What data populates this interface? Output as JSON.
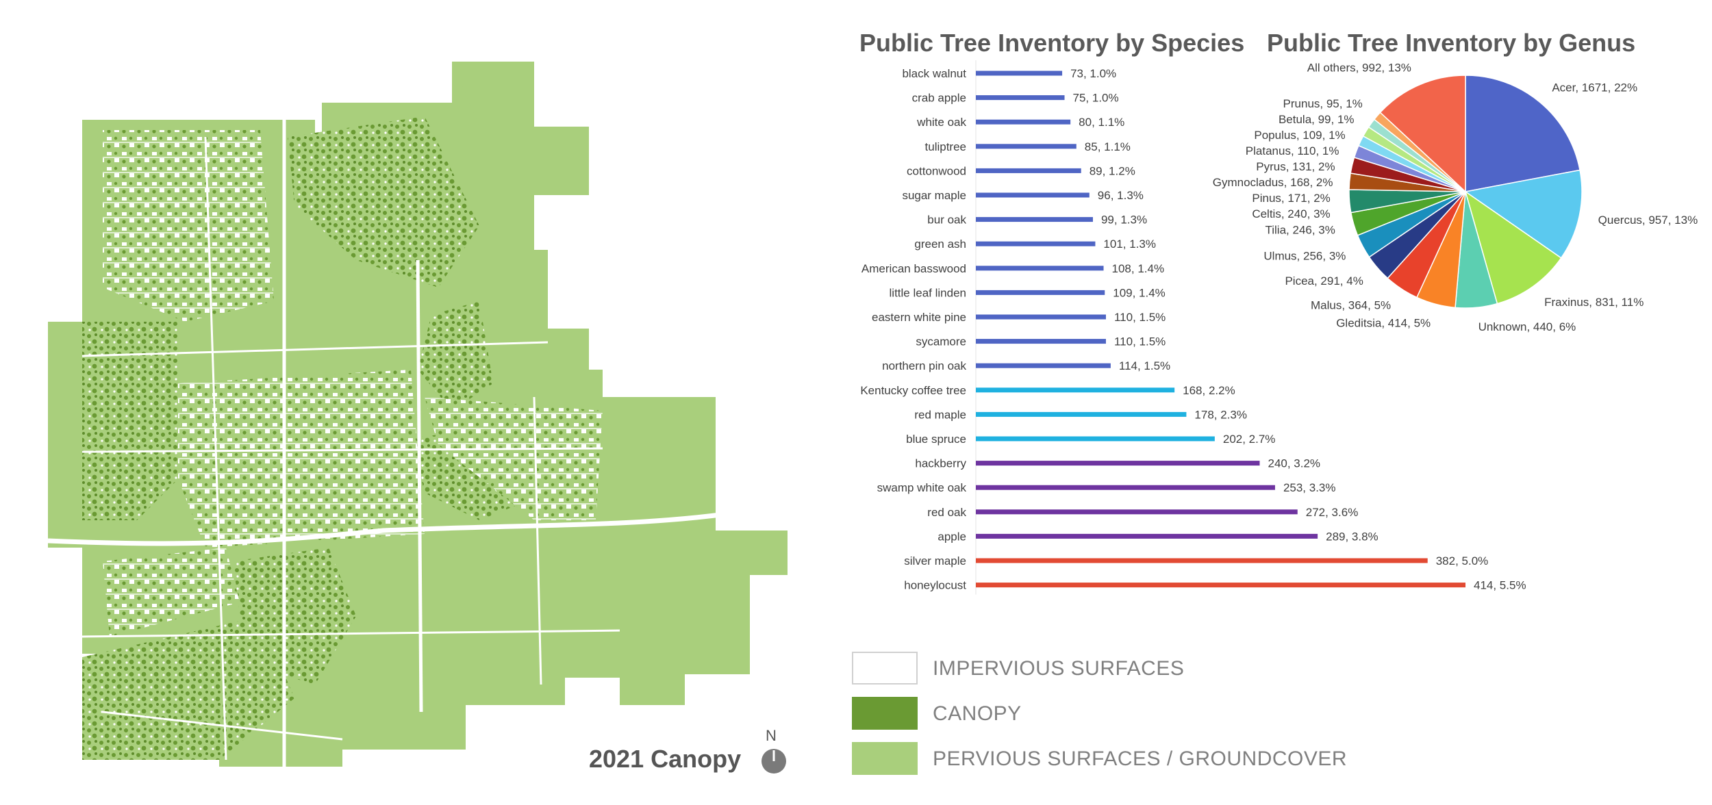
{
  "map": {
    "title": "2021 Canopy",
    "north_label": "N",
    "colors": {
      "canopy": "#6a9a33",
      "pervious": "#a9cf7c",
      "impervious": "#ffffff"
    }
  },
  "legend": {
    "items": [
      {
        "label": "IMPERVIOUS SURFACES",
        "color": "#ffffff"
      },
      {
        "label": "CANOPY",
        "color": "#6a9a33"
      },
      {
        "label": "PERVIOUS SURFACES / GROUNDCOVER",
        "color": "#a9cf7c"
      }
    ]
  },
  "chart_data": [
    {
      "type": "bar",
      "orientation": "horizontal",
      "title": "Public Tree Inventory by Species",
      "categories": [
        "black walnut",
        "crab apple",
        "white oak",
        "tuliptree",
        "cottonwood",
        "sugar maple",
        "bur oak",
        "green ash",
        "American basswood",
        "little leaf linden",
        "eastern white pine",
        "sycamore",
        "northern pin oak",
        "Kentucky coffee tree",
        "red maple",
        "blue spruce",
        "hackberry",
        "swamp white oak",
        "red oak",
        "apple",
        "silver maple",
        "honeylocust"
      ],
      "values": [
        73,
        75,
        80,
        85,
        89,
        96,
        99,
        101,
        108,
        109,
        110,
        110,
        114,
        168,
        178,
        202,
        240,
        253,
        272,
        289,
        382,
        414
      ],
      "percents": [
        "1.0%",
        "1.0%",
        "1.1%",
        "1.1%",
        "1.2%",
        "1.3%",
        "1.3%",
        "1.3%",
        "1.4%",
        "1.4%",
        "1.5%",
        "1.5%",
        "1.5%",
        "2.2%",
        "2.3%",
        "2.7%",
        "3.2%",
        "3.3%",
        "3.6%",
        "3.8%",
        "5.0%",
        "5.5%"
      ],
      "data_labels": [
        "73, 1.0%",
        "75, 1.0%",
        "80, 1.1%",
        "85, 1.1%",
        "89, 1.2%",
        "96, 1.3%",
        "99, 1.3%",
        "101, 1.3%",
        "108, 1.4%",
        "109, 1.4%",
        "110, 1.5%",
        "110, 1.5%",
        "114, 1.5%",
        "168, 2.2%",
        "178, 2.3%",
        "202, 2.7%",
        "240, 3.2%",
        "253, 3.3%",
        "272, 3.6%",
        "289, 3.8%",
        "382, 5.0%",
        "414, 5.5%"
      ],
      "bar_colors": [
        "#4f65c4",
        "#4f65c4",
        "#4f65c4",
        "#4f65c4",
        "#4f65c4",
        "#4f65c4",
        "#4f65c4",
        "#4f65c4",
        "#4f65c4",
        "#4f65c4",
        "#4f65c4",
        "#4f65c4",
        "#4f65c4",
        "#1fb1e0",
        "#1fb1e0",
        "#1fb1e0",
        "#6e34a0",
        "#6e34a0",
        "#6e34a0",
        "#6e34a0",
        "#e24a33",
        "#e24a33"
      ],
      "xlim": [
        0,
        414
      ],
      "xlabel": "",
      "ylabel": ""
    },
    {
      "type": "pie",
      "title": "Public Tree Inventory by Genus",
      "labels": [
        "Acer",
        "Quercus",
        "Fraxinus",
        "Unknown",
        "Gleditsia",
        "Malus",
        "Picea",
        "Ulmus",
        "Tilia",
        "Celtis",
        "Pinus",
        "Gymnocladus",
        "Pyrus",
        "Platanus",
        "Populus",
        "Betula",
        "Prunus",
        "All others"
      ],
      "values": [
        1671,
        957,
        831,
        440,
        414,
        364,
        291,
        256,
        246,
        240,
        171,
        168,
        131,
        110,
        109,
        99,
        95,
        992
      ],
      "data_labels": [
        "Acer, 1671, 22%",
        "Quercus, 957, 13%",
        "Fraxinus, 831, 11%",
        "Unknown, 440, 6%",
        "Gleditsia, 414, 5%",
        "Malus, 364, 5%",
        "Picea, 291, 4%",
        "Ulmus, 256, 3%",
        "Tilia, 246, 3%",
        "Celtis, 240, 3%",
        "Pinus, 171, 2%",
        "Gymnocladus, 168, 2%",
        "Pyrus, 131, 2%",
        "Platanus, 110, 1%",
        "Populus, 109, 1%",
        "Betula, 99, 1%",
        "Prunus, 95, 1%",
        "All others, 992, 13%"
      ],
      "colors": [
        "#4f65c8",
        "#5bc9ef",
        "#a6e34f",
        "#5ccfb1",
        "#f98326",
        "#e8422b",
        "#283b86",
        "#1a8fbd",
        "#4fa52b",
        "#238a6a",
        "#a84d12",
        "#9c1c1c",
        "#7d85d8",
        "#7fd9f2",
        "#b5e882",
        "#9ce0cf",
        "#f8a55e",
        "#f2644a"
      ]
    }
  ]
}
